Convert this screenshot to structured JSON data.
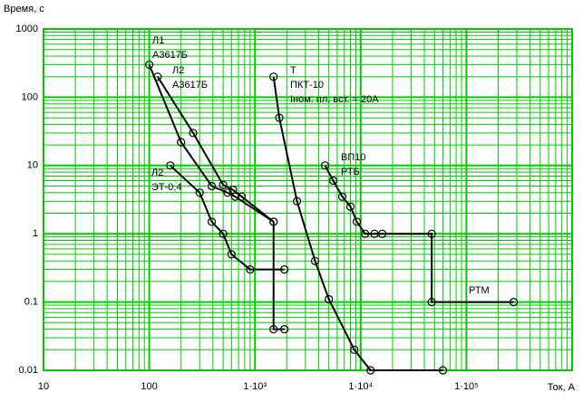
{
  "chart_data": {
    "type": "line",
    "ylabel": "Время, с",
    "xlabel": "Ток, А",
    "xscale": "log",
    "yscale": "log",
    "grid": true,
    "minor_grid": true,
    "xlim": [
      10,
      1000000
    ],
    "ylim": [
      0.01,
      1000
    ],
    "xticks": [
      10,
      100,
      {
        "value": 1000,
        "label": "1·10³"
      },
      {
        "value": 10000,
        "label": "1·10⁴"
      },
      {
        "value": 100000,
        "label": "1·10⁵"
      }
    ],
    "yticks": [
      0.01,
      0.1,
      1,
      10,
      100,
      1000
    ],
    "grid_color": "#00cc00",
    "series": [
      {
        "color": "#000000",
        "x": [
          100,
          200,
          390,
          550,
          650,
          1500
        ],
        "values": [
          300,
          22,
          5,
          4,
          3.5,
          1.5
        ]
      },
      {
        "color": "#000000",
        "x": [
          120,
          260,
          500,
          620,
          750,
          1500,
          1500,
          1900
        ],
        "values": [
          200,
          30,
          5.2,
          4.4,
          3.5,
          1.5,
          0.04,
          0.04
        ]
      },
      {
        "color": "#000000",
        "x": [
          158,
          300,
          390,
          500,
          600,
          900,
          1900
        ],
        "values": [
          10,
          4,
          1.5,
          1,
          0.5,
          0.3,
          0.3
        ]
      },
      {
        "color": "#000000",
        "x": [
          1500,
          1700,
          2500,
          3700,
          5000,
          8700,
          12400,
          60000
        ],
        "values": [
          200,
          50,
          3,
          0.4,
          0.11,
          0.02,
          0.01,
          0.01
        ]
      },
      {
        "color": "#000000",
        "x": [
          4600,
          5500,
          6700,
          8000,
          9200,
          11000,
          13500,
          16000,
          47000,
          47000,
          280000
        ],
        "values": [
          10,
          6,
          3.5,
          2.5,
          1.5,
          1,
          1,
          1,
          1,
          0.1,
          0.1
        ]
      }
    ],
    "annotations": [
      {
        "lines": [
          "Л1",
          "А3617Б"
        ]
      },
      {
        "lines": [
          "Л2",
          "А3617Б"
        ]
      },
      {
        "lines": [
          "Л2",
          "ЭТ-0,4"
        ]
      },
      {
        "lines": [
          "Т",
          "ПКТ-10",
          "Iном. пл. вст. = 20А"
        ]
      },
      {
        "lines": [
          "ВП10",
          "РТБ"
        ]
      },
      {
        "lines": [
          "РТМ"
        ]
      }
    ]
  }
}
